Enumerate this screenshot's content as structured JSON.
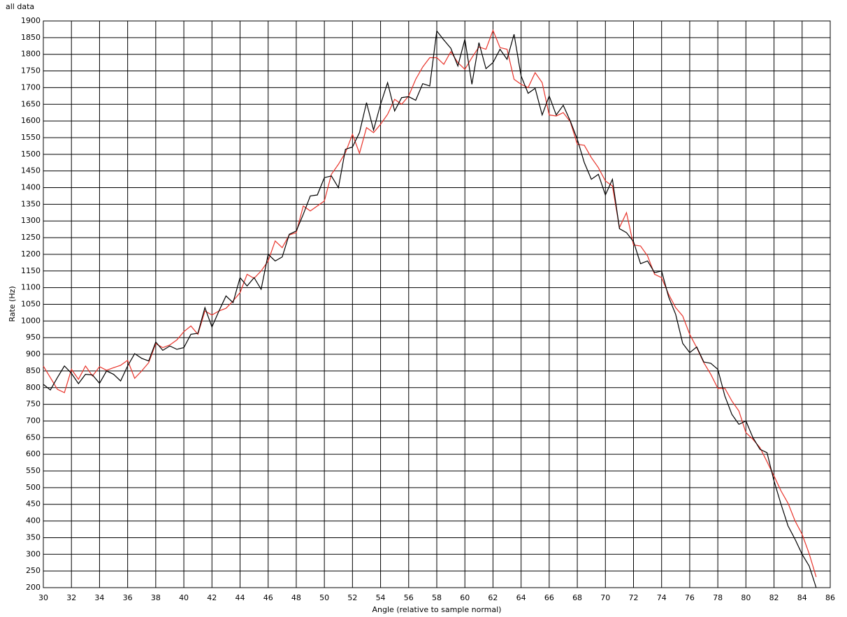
{
  "chart_data": {
    "type": "line",
    "title": "all data",
    "xlabel": "Angle (relative to sample normal)",
    "ylabel": "Rate (Hz)",
    "x": [
      30,
      30.5,
      31,
      31.5,
      32,
      32.5,
      33,
      33.5,
      34,
      34.5,
      35,
      35.5,
      36,
      36.5,
      37,
      37.5,
      38,
      38.5,
      39,
      39.5,
      40,
      40.5,
      41,
      41.5,
      42,
      42.5,
      43,
      43.5,
      44,
      44.5,
      45,
      45.5,
      46,
      46.5,
      47,
      47.5,
      48,
      48.5,
      49,
      49.5,
      50,
      50.5,
      51,
      51.5,
      52,
      52.5,
      53,
      53.5,
      54,
      54.5,
      55,
      55.5,
      56,
      56.5,
      57,
      57.5,
      58,
      58.5,
      59,
      59.5,
      60,
      60.5,
      61,
      61.5,
      62,
      62.5,
      63,
      63.5,
      64,
      64.5,
      65,
      65.5,
      66,
      66.5,
      67,
      67.5,
      68,
      68.5,
      69,
      69.5,
      70,
      70.5,
      71,
      71.5,
      72,
      72.5,
      73,
      73.5,
      74,
      74.5,
      75,
      75.5,
      76,
      76.5,
      77,
      77.5,
      78,
      78.5,
      79,
      79.5,
      80,
      80.5,
      81,
      81.5,
      82,
      82.5,
      83,
      83.5,
      84,
      84.5,
      85
    ],
    "series": [
      {
        "color": "#000000",
        "values": [
          810,
          793,
          830,
          865,
          843,
          812,
          840,
          838,
          813,
          850,
          840,
          820,
          865,
          902,
          888,
          880,
          937,
          912,
          925,
          915,
          920,
          960,
          963,
          1040,
          982,
          1030,
          1075,
          1055,
          1130,
          1105,
          1130,
          1095,
          1200,
          1180,
          1192,
          1260,
          1270,
          1320,
          1375,
          1378,
          1430,
          1435,
          1400,
          1515,
          1522,
          1565,
          1655,
          1573,
          1650,
          1715,
          1630,
          1670,
          1673,
          1662,
          1712,
          1705,
          1870,
          1843,
          1818,
          1765,
          1845,
          1710,
          1835,
          1757,
          1775,
          1815,
          1785,
          1860,
          1735,
          1683,
          1698,
          1618,
          1675,
          1618,
          1647,
          1600,
          1545,
          1475,
          1425,
          1440,
          1378,
          1425,
          1277,
          1265,
          1238,
          1172,
          1180,
          1145,
          1150,
          1072,
          1020,
          933,
          905,
          922,
          877,
          873,
          855,
          775,
          720,
          690,
          700,
          650,
          615,
          605,
          520,
          450,
          385,
          345,
          300,
          265,
          200
        ]
      },
      {
        "color": "#e8332a",
        "values": [
          865,
          830,
          795,
          785,
          855,
          825,
          865,
          835,
          863,
          852,
          860,
          867,
          882,
          828,
          850,
          875,
          932,
          920,
          928,
          943,
          968,
          985,
          960,
          1030,
          1018,
          1030,
          1038,
          1060,
          1085,
          1140,
          1128,
          1150,
          1180,
          1240,
          1220,
          1258,
          1265,
          1345,
          1330,
          1345,
          1360,
          1440,
          1470,
          1505,
          1560,
          1503,
          1580,
          1565,
          1590,
          1620,
          1665,
          1650,
          1675,
          1725,
          1762,
          1790,
          1790,
          1770,
          1808,
          1775,
          1755,
          1790,
          1822,
          1815,
          1872,
          1820,
          1815,
          1725,
          1710,
          1700,
          1745,
          1715,
          1618,
          1615,
          1625,
          1598,
          1530,
          1527,
          1490,
          1460,
          1420,
          1405,
          1280,
          1325,
          1228,
          1225,
          1195,
          1140,
          1130,
          1080,
          1040,
          1015,
          960,
          920,
          875,
          840,
          798,
          798,
          760,
          730,
          665,
          645,
          620,
          578,
          535,
          490,
          453,
          400,
          360,
          302,
          232
        ]
      }
    ],
    "xlim": [
      30,
      86
    ],
    "xticks": [
      30,
      32,
      34,
      36,
      38,
      40,
      42,
      44,
      46,
      48,
      50,
      52,
      54,
      56,
      58,
      60,
      62,
      64,
      66,
      68,
      70,
      72,
      74,
      76,
      78,
      80,
      82,
      84,
      86
    ],
    "ylim": [
      200,
      1900
    ],
    "yticks": [
      200,
      250,
      300,
      350,
      400,
      450,
      500,
      550,
      600,
      650,
      700,
      750,
      800,
      850,
      900,
      950,
      1000,
      1050,
      1100,
      1150,
      1200,
      1250,
      1300,
      1350,
      1400,
      1450,
      1500,
      1550,
      1600,
      1650,
      1700,
      1750,
      1800,
      1850,
      1900
    ],
    "grid": true
  }
}
